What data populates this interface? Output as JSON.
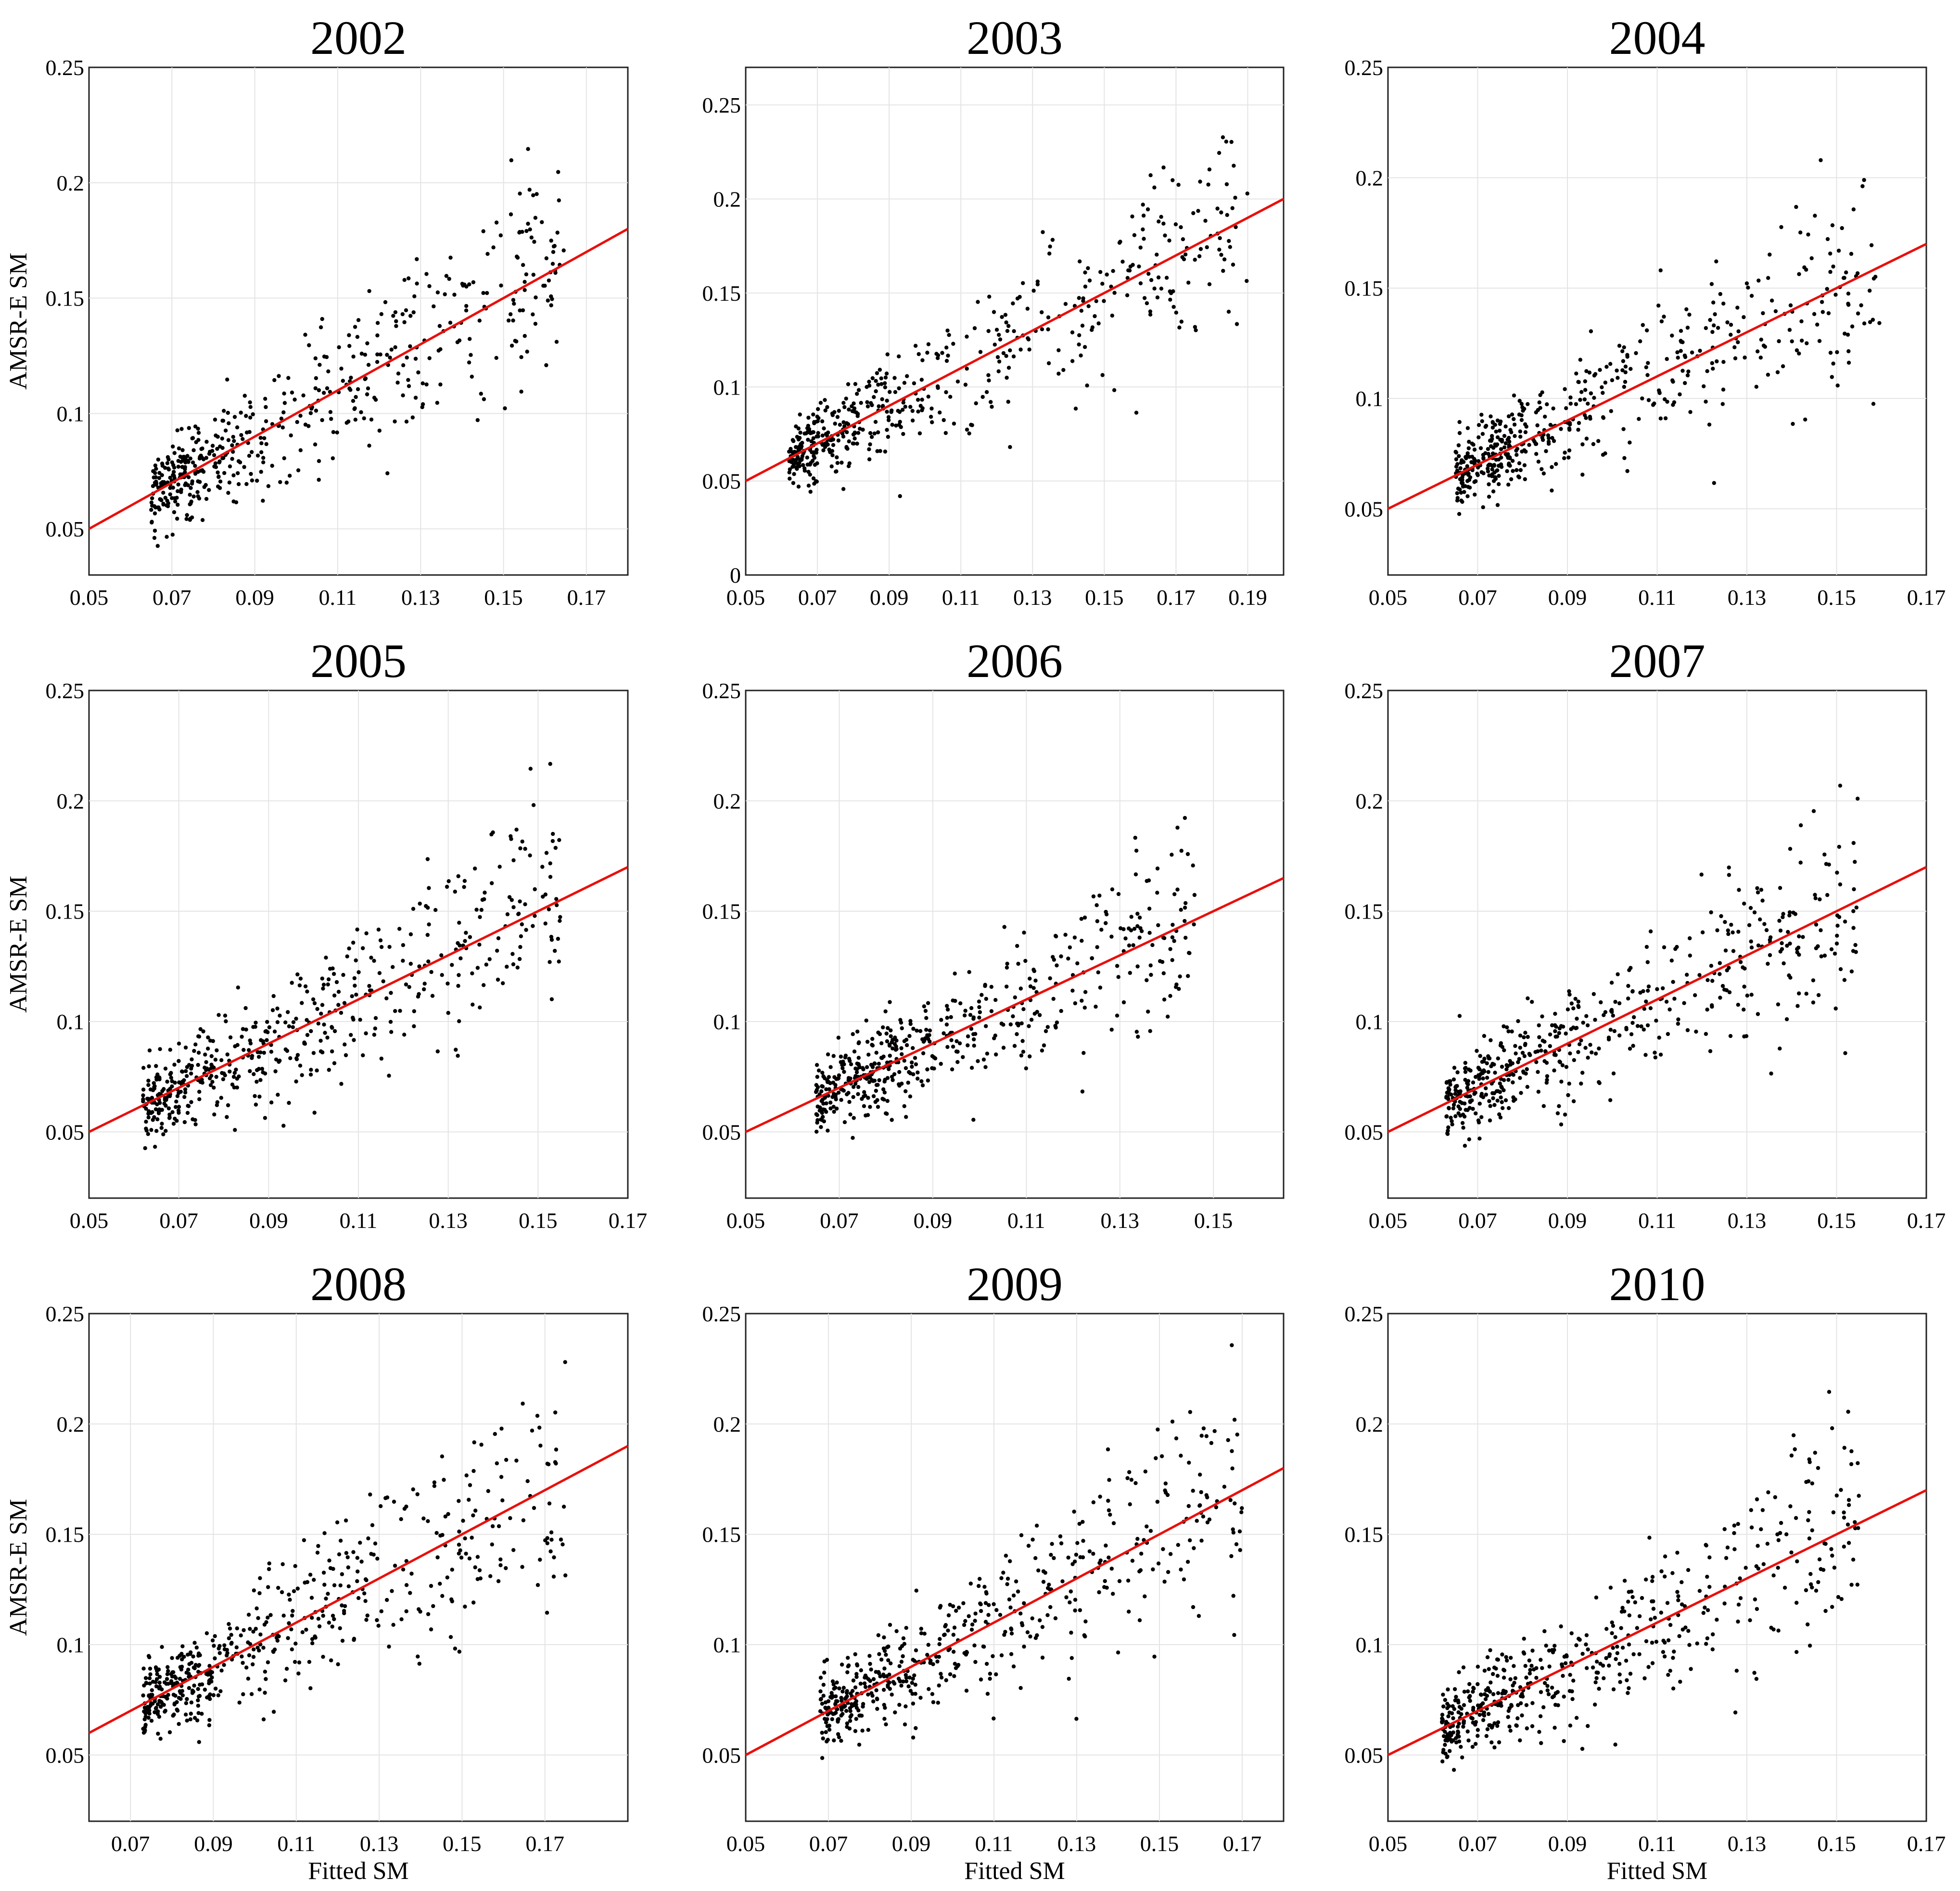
{
  "figure": {
    "x_axis_label": "Fitted SM",
    "y_axis_label": "AMSR-E SM"
  },
  "colors": {
    "points": "#000000",
    "fit_line": "#e8100c",
    "grid": "#e4e4e4"
  },
  "chart_data": [
    {
      "type": "scatter",
      "title": "2002",
      "xlim": [
        0.05,
        0.18
      ],
      "ylim": [
        0.03,
        0.25
      ],
      "xticks": [
        "0.05",
        "0.07",
        "0.09",
        "0.11",
        "0.13",
        "0.15",
        "0.17"
      ],
      "yticks": [
        "0.05",
        "0.1",
        "0.15",
        "0.2",
        "0.25"
      ],
      "fit_line": {
        "x": [
          0.05,
          0.18
        ],
        "y": [
          0.05,
          0.18
        ]
      },
      "point_cloud": {
        "x_range": [
          0.065,
          0.165
        ],
        "count": 520
      },
      "xlabel": "",
      "ylabel": "AMSR-E SM"
    },
    {
      "type": "scatter",
      "title": "2003",
      "xlim": [
        0.05,
        0.2
      ],
      "ylim": [
        0,
        0.27
      ],
      "xticks": [
        "0.05",
        "0.07",
        "0.09",
        "0.11",
        "0.13",
        "0.15",
        "0.17",
        "0.19"
      ],
      "yticks": [
        "0",
        "0.05",
        "0.1",
        "0.15",
        "0.2",
        "0.25"
      ],
      "fit_line": {
        "x": [
          0.05,
          0.2
        ],
        "y": [
          0.05,
          0.2
        ]
      },
      "point_cloud": {
        "x_range": [
          0.062,
          0.19
        ],
        "count": 520
      },
      "xlabel": "",
      "ylabel": ""
    },
    {
      "type": "scatter",
      "title": "2004",
      "xlim": [
        0.05,
        0.17
      ],
      "ylim": [
        0.02,
        0.25
      ],
      "xticks": [
        "0.05",
        "0.07",
        "0.09",
        "0.11",
        "0.13",
        "0.15",
        "0.17"
      ],
      "yticks": [
        "0.05",
        "0.1",
        "0.15",
        "0.2",
        "0.25"
      ],
      "fit_line": {
        "x": [
          0.05,
          0.17
        ],
        "y": [
          0.05,
          0.17
        ]
      },
      "point_cloud": {
        "x_range": [
          0.065,
          0.16
        ],
        "count": 520
      },
      "xlabel": "",
      "ylabel": ""
    },
    {
      "type": "scatter",
      "title": "2005",
      "xlim": [
        0.05,
        0.17
      ],
      "ylim": [
        0.02,
        0.25
      ],
      "xticks": [
        "0.05",
        "0.07",
        "0.09",
        "0.11",
        "0.13",
        "0.15",
        "0.17"
      ],
      "yticks": [
        "0.05",
        "0.1",
        "0.15",
        "0.2",
        "0.25"
      ],
      "fit_line": {
        "x": [
          0.05,
          0.17
        ],
        "y": [
          0.05,
          0.17
        ]
      },
      "point_cloud": {
        "x_range": [
          0.062,
          0.155
        ],
        "count": 520
      },
      "xlabel": "",
      "ylabel": "AMSR-E SM"
    },
    {
      "type": "scatter",
      "title": "2006",
      "xlim": [
        0.05,
        0.165
      ],
      "ylim": [
        0.02,
        0.25
      ],
      "xticks": [
        "0.05",
        "0.07",
        "0.09",
        "0.11",
        "0.13",
        "0.15"
      ],
      "yticks": [
        "0.05",
        "0.1",
        "0.15",
        "0.2",
        "0.25"
      ],
      "fit_line": {
        "x": [
          0.05,
          0.165
        ],
        "y": [
          0.05,
          0.165
        ]
      },
      "point_cloud": {
        "x_range": [
          0.065,
          0.146
        ],
        "count": 520
      },
      "xlabel": "",
      "ylabel": ""
    },
    {
      "type": "scatter",
      "title": "2007",
      "xlim": [
        0.05,
        0.17
      ],
      "ylim": [
        0.02,
        0.25
      ],
      "xticks": [
        "0.05",
        "0.07",
        "0.09",
        "0.11",
        "0.13",
        "0.15",
        "0.17"
      ],
      "yticks": [
        "0.05",
        "0.1",
        "0.15",
        "0.2",
        "0.25"
      ],
      "fit_line": {
        "x": [
          0.05,
          0.17
        ],
        "y": [
          0.05,
          0.17
        ]
      },
      "point_cloud": {
        "x_range": [
          0.063,
          0.155
        ],
        "count": 520
      },
      "xlabel": "",
      "ylabel": ""
    },
    {
      "type": "scatter",
      "title": "2008",
      "xlim": [
        0.06,
        0.19
      ],
      "ylim": [
        0.02,
        0.25
      ],
      "xticks": [
        "0.07",
        "0.09",
        "0.11",
        "0.13",
        "0.15",
        "0.17"
      ],
      "yticks": [
        "0.05",
        "0.1",
        "0.15",
        "0.2",
        "0.25"
      ],
      "fit_line": {
        "x": [
          0.06,
          0.19
        ],
        "y": [
          0.06,
          0.19
        ]
      },
      "point_cloud": {
        "x_range": [
          0.073,
          0.175
        ],
        "count": 520
      },
      "xlabel": "Fitted SM",
      "ylabel": "AMSR-E SM"
    },
    {
      "type": "scatter",
      "title": "2009",
      "xlim": [
        0.05,
        0.18
      ],
      "ylim": [
        0.02,
        0.25
      ],
      "xticks": [
        "0.05",
        "0.07",
        "0.09",
        "0.11",
        "0.13",
        "0.15",
        "0.17"
      ],
      "yticks": [
        "0.05",
        "0.1",
        "0.15",
        "0.2",
        "0.25"
      ],
      "fit_line": {
        "x": [
          0.05,
          0.18
        ],
        "y": [
          0.05,
          0.18
        ]
      },
      "point_cloud": {
        "x_range": [
          0.068,
          0.17
        ],
        "count": 520
      },
      "xlabel": "Fitted SM",
      "ylabel": ""
    },
    {
      "type": "scatter",
      "title": "2010",
      "xlim": [
        0.05,
        0.17
      ],
      "ylim": [
        0.02,
        0.25
      ],
      "xticks": [
        "0.05",
        "0.07",
        "0.09",
        "0.11",
        "0.13",
        "0.15",
        "0.17"
      ],
      "yticks": [
        "0.05",
        "0.1",
        "0.15",
        "0.2",
        "0.25"
      ],
      "fit_line": {
        "x": [
          0.05,
          0.17
        ],
        "y": [
          0.05,
          0.17
        ]
      },
      "point_cloud": {
        "x_range": [
          0.062,
          0.155
        ],
        "count": 520
      },
      "xlabel": "Fitted SM",
      "ylabel": ""
    }
  ]
}
